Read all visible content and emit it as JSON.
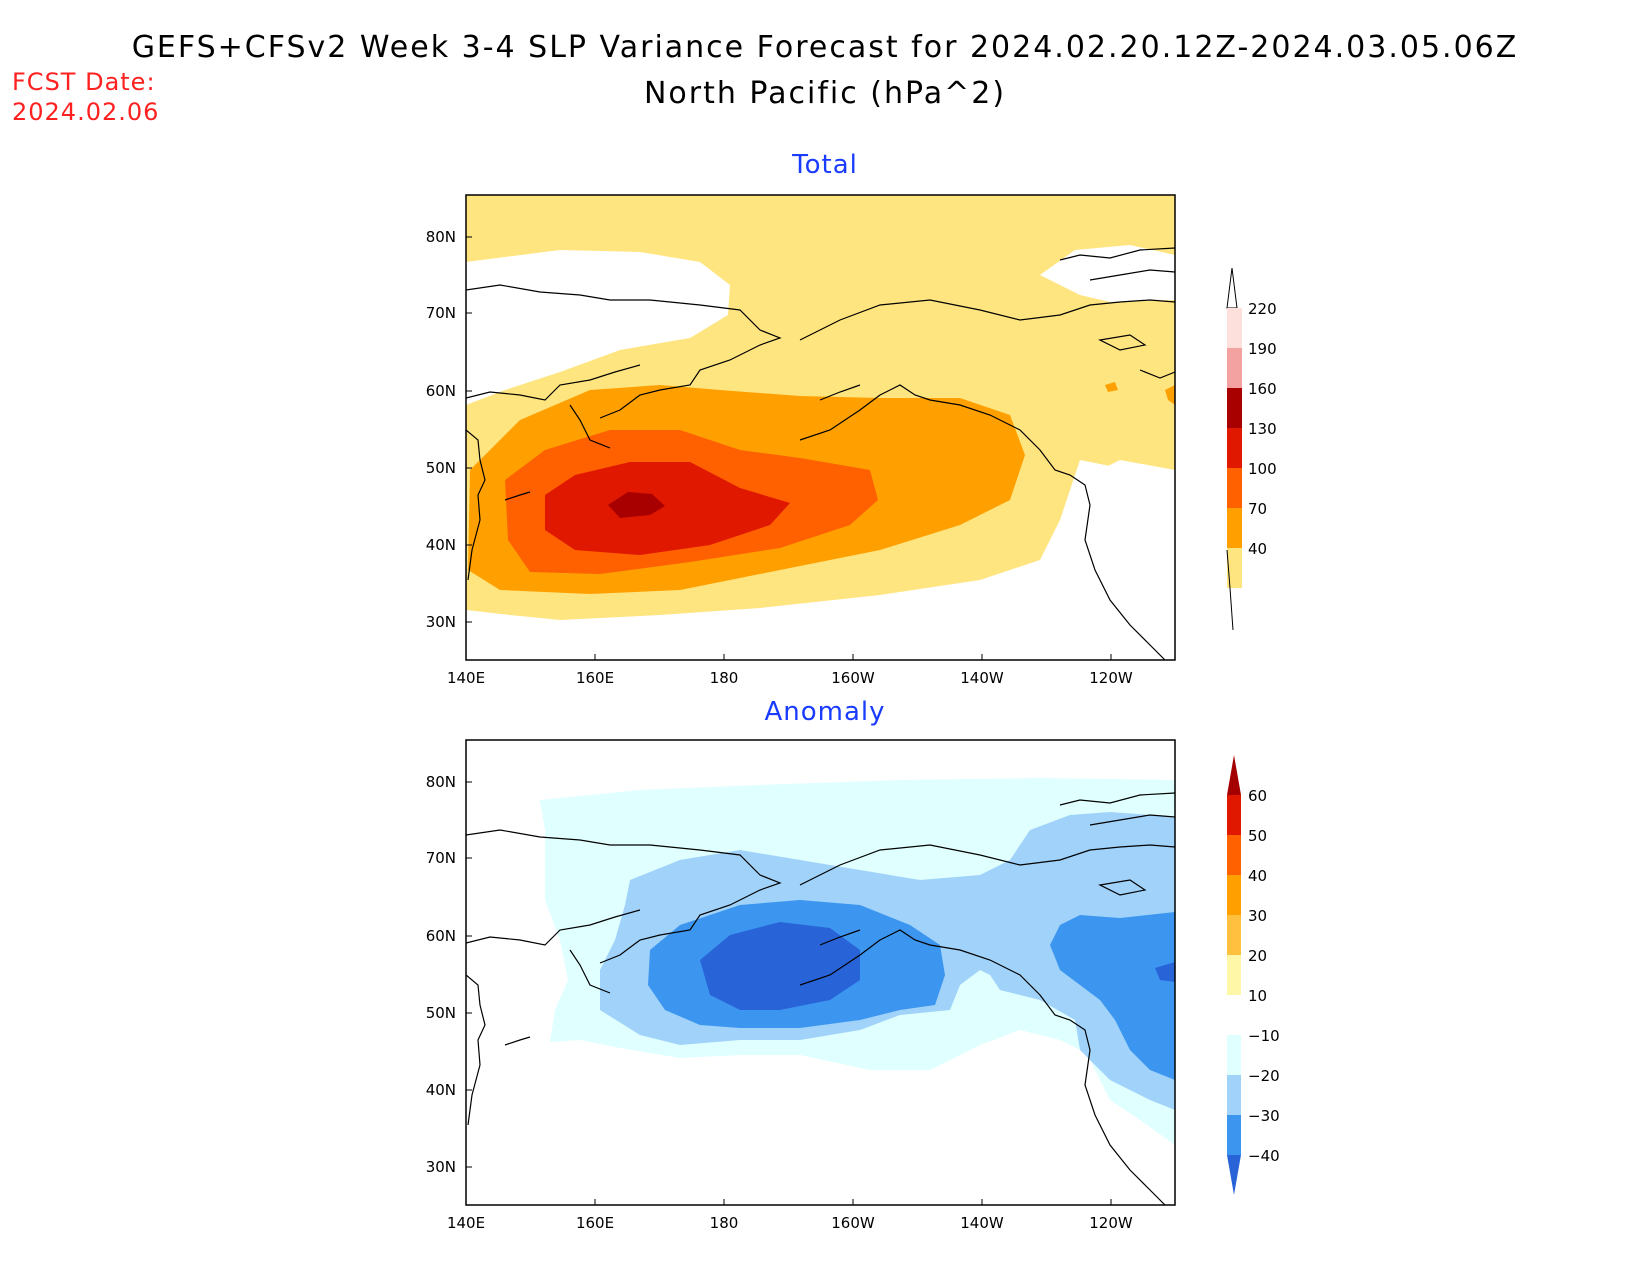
{
  "header": {
    "title": "GEFS+CFSv2 Week 3-4 SLP Variance Forecast for 2024.02.20.12Z-2024.03.05.06Z",
    "subtitle": "North Pacific (hPa^2)",
    "fcst_label": "FCST Date:",
    "fcst_date": "2024.02.06"
  },
  "axes": {
    "lat_ticks": [
      "80N",
      "70N",
      "60N",
      "50N",
      "40N",
      "30N"
    ],
    "lon_ticks": [
      "140E",
      "160E",
      "180",
      "160W",
      "140W",
      "120W"
    ]
  },
  "panels": {
    "total": {
      "title": "Total",
      "colorbar": {
        "labels": [
          "220",
          "190",
          "160",
          "130",
          "100",
          "70",
          "40"
        ],
        "colors": [
          "#fde0dc",
          "#f4a1a1",
          "#a80000",
          "#e01800",
          "#ff6000",
          "#ffa000",
          "#ffe580"
        ]
      }
    },
    "anomaly": {
      "title": "Anomaly",
      "colorbar": {
        "labels": [
          "60",
          "50",
          "40",
          "30",
          "20",
          "10",
          "−10",
          "−20",
          "−30",
          "−40"
        ],
        "colors": [
          "#a50000",
          "#e01800",
          "#ff6000",
          "#ffa000",
          "#ffc040",
          "#fff7a8",
          "#ffffff",
          "#e0ffff",
          "#a0d2fa",
          "#3c96f0",
          "#2864d8"
        ]
      }
    }
  }
}
